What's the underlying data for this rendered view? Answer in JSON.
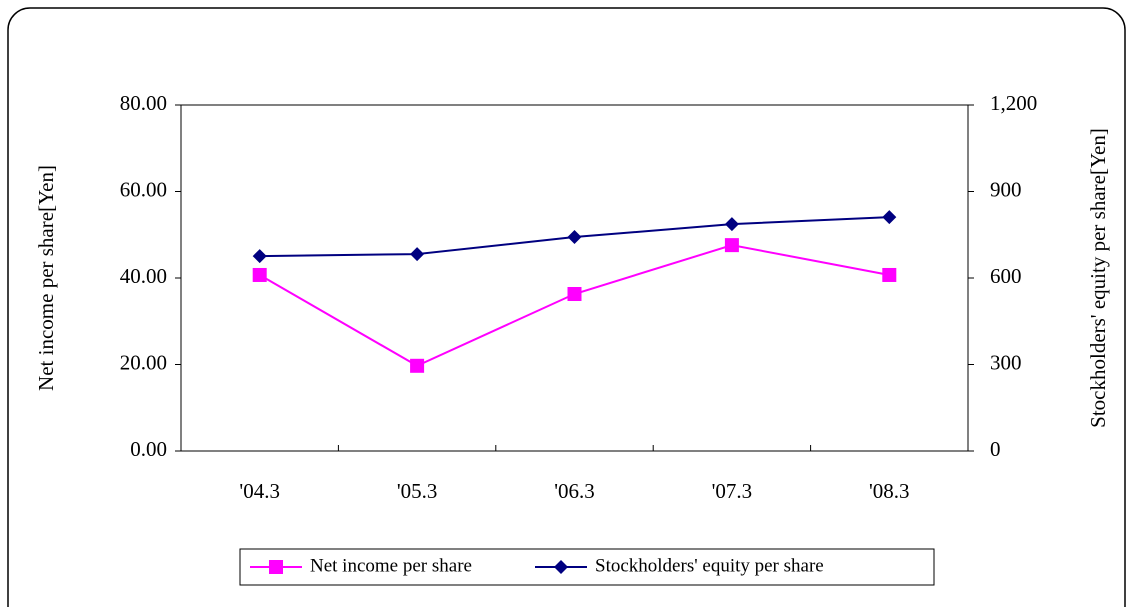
{
  "chart_data": {
    "type": "line",
    "categories": [
      "'04.3",
      "'05.3",
      "'06.3",
      "'07.3",
      "'08.3"
    ],
    "ylabel": "Net income per share[Yen]",
    "y2label": "Stockholders' equity per share[Yen]",
    "ylim": [
      0,
      80
    ],
    "yticks": [
      {
        "value": 0,
        "label": "0.00"
      },
      {
        "value": 20,
        "label": "20.00"
      },
      {
        "value": 40,
        "label": "40.00"
      },
      {
        "value": 60,
        "label": "60.00"
      },
      {
        "value": 80,
        "label": "80.00"
      }
    ],
    "y2lim": [
      0,
      1200
    ],
    "y2ticks": [
      0,
      300,
      600,
      900,
      {
        "value": 1200,
        "label": "1,200"
      }
    ],
    "series": [
      {
        "name": "Net income per share",
        "color": "#ff00ff",
        "marker": "square",
        "values": [
          40.7,
          19.7,
          36.3,
          47.6,
          40.7
        ]
      },
      {
        "name": "Stockholders' equity per share",
        "color": "#000080",
        "marker": "diamond",
        "axis": "y2",
        "values": [
          676,
          683,
          742,
          787,
          811
        ]
      }
    ],
    "legend": "bottom"
  }
}
